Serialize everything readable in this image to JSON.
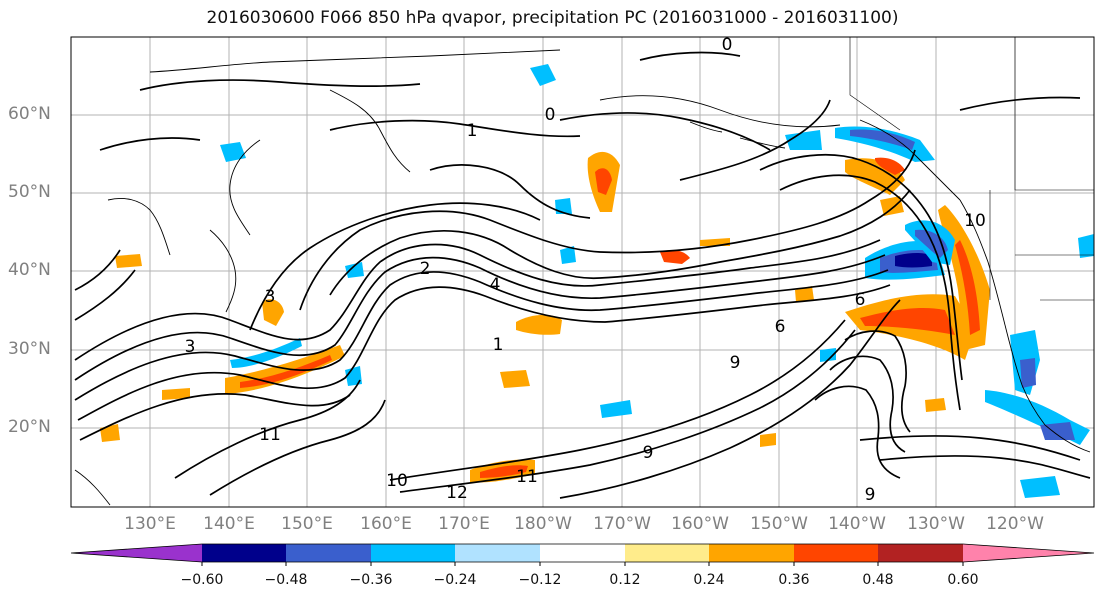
{
  "title": "2016030600 F066 850 hPa qvapor, precipitation PC (2016031000 - 2016031100)",
  "lat_labels": [
    "60°N",
    "50°N",
    "40°N",
    "30°N",
    "20°N"
  ],
  "lon_labels": [
    "130°E",
    "140°E",
    "150°E",
    "160°E",
    "170°E",
    "180°W",
    "170°W",
    "160°W",
    "150°W",
    "140°W",
    "130°W",
    "120°W"
  ],
  "colorbar": {
    "tick_labels": [
      "−0.60",
      "−0.48",
      "−0.36",
      "−0.24",
      "−0.12",
      "0.12",
      "0.24",
      "0.36",
      "0.48",
      "0.60"
    ],
    "colors": [
      "#9a32cd",
      "#00008b",
      "#3a5fcd",
      "#00bfff",
      "#b0e2ff",
      "#ffffff",
      "#ffec8b",
      "#ffa500",
      "#ff4500",
      "#b22222",
      "#ff82ab"
    ]
  },
  "contour_labels": [
    "0",
    "0",
    "1",
    "1",
    "2",
    "3",
    "3",
    "4",
    "6",
    "6",
    "9",
    "9",
    "9",
    "10",
    "10",
    "11",
    "11",
    "12"
  ]
}
